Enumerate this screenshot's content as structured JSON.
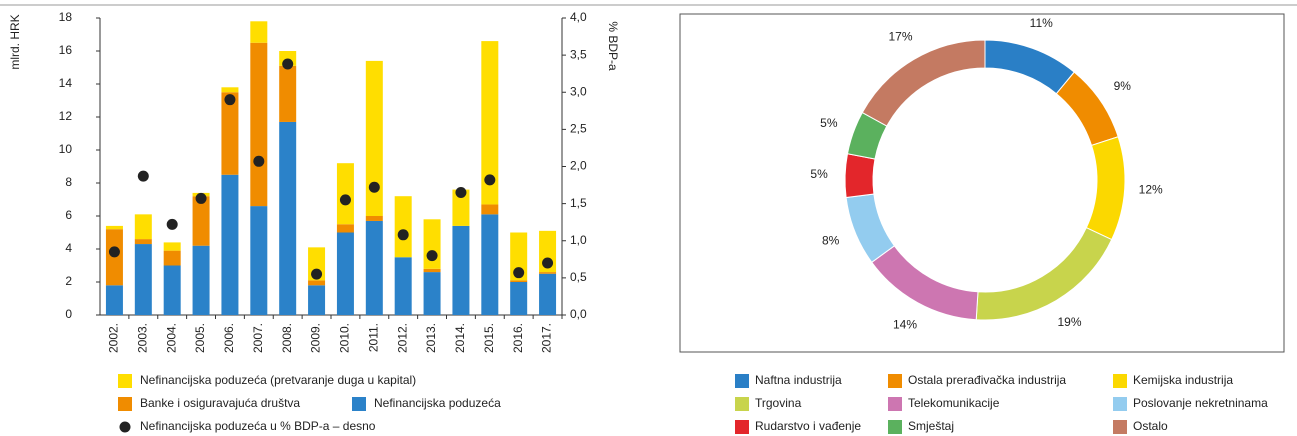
{
  "chart_data": [
    {
      "type": "bar",
      "stacked": true,
      "ylabel": "mlrd. HRK",
      "y2label": "% BDP-a",
      "categories": [
        "2002.",
        "2003.",
        "2004.",
        "2005.",
        "2006.",
        "2007.",
        "2008.",
        "2009.",
        "2010.",
        "2011.",
        "2012.",
        "2013.",
        "2014.",
        "2015.",
        "2016.",
        "2017."
      ],
      "ylim": [
        0,
        18
      ],
      "yticks": [
        0,
        2,
        4,
        6,
        8,
        10,
        12,
        14,
        16,
        18
      ],
      "y2lim": [
        0,
        4
      ],
      "y2ticks": [
        {
          "value": 0,
          "label": "0,0"
        },
        {
          "value": 0.5,
          "label": "0,5"
        },
        {
          "value": 1,
          "label": "1,0"
        },
        {
          "value": 1.5,
          "label": "1,5"
        },
        {
          "value": 2,
          "label": "2,0"
        },
        {
          "value": 2.5,
          "label": "2,5"
        },
        {
          "value": 3,
          "label": "3,0"
        },
        {
          "value": 3.5,
          "label": "3,5"
        },
        {
          "value": 4,
          "label": "4,0"
        }
      ],
      "series": [
        {
          "name": "Nefinancijska poduzeća",
          "color": "#2b82c9",
          "values": [
            1.8,
            4.3,
            3.0,
            4.2,
            8.5,
            6.6,
            11.7,
            1.8,
            5.0,
            5.7,
            3.5,
            2.6,
            5.4,
            6.1,
            2.0,
            2.5
          ]
        },
        {
          "name": "Banke i osiguravajuća društva",
          "color": "#f08c00",
          "values": [
            3.4,
            0.3,
            0.9,
            3.0,
            5.0,
            9.9,
            3.4,
            0.3,
            0.5,
            0.3,
            0,
            0.2,
            0,
            0.6,
            0.1,
            0.1
          ]
        },
        {
          "name": "Nefinancijska poduzeća (pretvaranje duga u kapital)",
          "color": "#ffde00",
          "values": [
            0.2,
            1.5,
            0.5,
            0.2,
            0.3,
            1.3,
            0.9,
            2.0,
            3.7,
            9.4,
            3.7,
            3.0,
            2.2,
            9.9,
            2.9,
            2.5
          ]
        },
        {
          "name": "Nefinancijska poduzeća u % BDP-a – desno",
          "color": "#222222",
          "type": "scatter",
          "axis": "y2",
          "values": [
            0.85,
            1.87,
            1.22,
            1.57,
            2.9,
            2.07,
            3.38,
            0.55,
            1.55,
            1.72,
            1.08,
            0.8,
            1.65,
            1.82,
            0.57,
            0.7
          ]
        }
      ]
    },
    {
      "type": "pie",
      "donut": true,
      "categories": [
        "Naftna industrija",
        "Ostala prerađivačka industrija",
        "Kemijska industrija",
        "Trgovina",
        "Telekomunikacije",
        "Poslovanje nekretninama",
        "Rudarstvo i vađenje",
        "Smještaj",
        "Ostalo"
      ],
      "values": [
        11,
        9,
        12,
        19,
        14,
        8,
        5,
        5,
        17
      ],
      "value_labels": [
        "11%",
        "9%",
        "12%",
        "19%",
        "14%",
        "8%",
        "5%",
        "5%",
        "17%"
      ],
      "colors": [
        "#2a7fc6",
        "#f08c00",
        "#fbd800",
        "#c8d44c",
        "#cd76b1",
        "#93ccef",
        "#e3262b",
        "#5bb15e",
        "#c47a62"
      ]
    }
  ]
}
